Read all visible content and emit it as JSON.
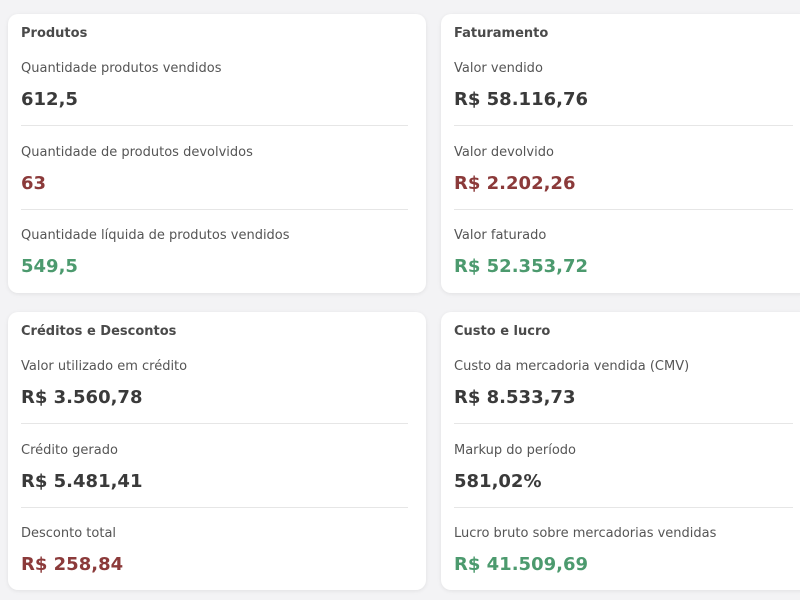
{
  "colors": {
    "neutral": "#3a3a3a",
    "negative": "#8b3a3a",
    "positive": "#4c9a6e"
  },
  "cards": [
    {
      "title": "Produtos",
      "metrics": [
        {
          "label": "Quantidade produtos vendidos",
          "value": "612,5",
          "tone": "neutral"
        },
        {
          "label": "Quantidade de produtos devolvidos",
          "value": "63",
          "tone": "negative"
        },
        {
          "label": "Quantidade líquida de produtos vendidos",
          "value": "549,5",
          "tone": "positive"
        }
      ]
    },
    {
      "title": "Faturamento",
      "metrics": [
        {
          "label": "Valor vendido",
          "value": "R$ 58.116,76",
          "tone": "neutral"
        },
        {
          "label": "Valor devolvido",
          "value": "R$ 2.202,26",
          "tone": "negative"
        },
        {
          "label": "Valor faturado",
          "value": "R$ 52.353,72",
          "tone": "positive"
        }
      ]
    },
    {
      "title": "Créditos e Descontos",
      "metrics": [
        {
          "label": "Valor utilizado em crédito",
          "value": "R$ 3.560,78",
          "tone": "neutral"
        },
        {
          "label": "Crédito gerado",
          "value": "R$ 5.481,41",
          "tone": "neutral"
        },
        {
          "label": "Desconto total",
          "value": "R$ 258,84",
          "tone": "negative"
        }
      ]
    },
    {
      "title": "Custo e lucro",
      "metrics": [
        {
          "label": "Custo da mercadoria vendida (CMV)",
          "value": "R$ 8.533,73",
          "tone": "neutral"
        },
        {
          "label": "Markup do período",
          "value": "581,02%",
          "tone": "neutral"
        },
        {
          "label": "Lucro bruto sobre mercadorias vendidas",
          "value": "R$ 41.509,69",
          "tone": "positive"
        }
      ]
    }
  ]
}
